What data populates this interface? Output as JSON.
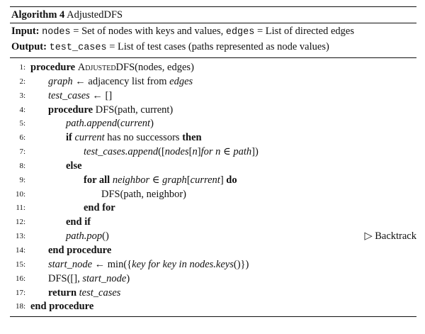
{
  "caption": {
    "label": "Algorithm 4",
    "name": "AdjustedDFS"
  },
  "spec": {
    "input_kw": "Input:",
    "input_var1": "nodes",
    "input_text1": " = Set of nodes with keys and values, ",
    "input_var2": "edges",
    "input_text2": " = List of directed edges",
    "output_kw": "Output:",
    "output_var": "test_cases",
    "output_text": " = List of test cases (paths represented as node values)"
  },
  "lines": [
    {
      "n": "1:",
      "indent": 0,
      "parts": [
        {
          "t": "procedure ",
          "s": "kw"
        },
        {
          "t": "Adjusted",
          "s": "sc"
        },
        {
          "t": "DFS(nodes, edges)",
          "s": ""
        }
      ]
    },
    {
      "n": "2:",
      "indent": 1,
      "parts": [
        {
          "t": "graph",
          "s": "it"
        },
        {
          "t": " ← adjacency list from ",
          "s": ""
        },
        {
          "t": "edges",
          "s": "it"
        }
      ]
    },
    {
      "n": "3:",
      "indent": 1,
      "parts": [
        {
          "t": "test_cases",
          "s": "it"
        },
        {
          "t": " ← []",
          "s": ""
        }
      ]
    },
    {
      "n": "4:",
      "indent": 1,
      "parts": [
        {
          "t": "procedure ",
          "s": "kw"
        },
        {
          "t": "DFS(path, current)",
          "s": ""
        }
      ]
    },
    {
      "n": "5:",
      "indent": 2,
      "parts": [
        {
          "t": "path.append",
          "s": "it"
        },
        {
          "t": "(",
          "s": ""
        },
        {
          "t": "current",
          "s": "it"
        },
        {
          "t": ")",
          "s": ""
        }
      ]
    },
    {
      "n": "6:",
      "indent": 2,
      "parts": [
        {
          "t": "if ",
          "s": "kw"
        },
        {
          "t": "current",
          "s": "it"
        },
        {
          "t": " has no successors ",
          "s": ""
        },
        {
          "t": "then",
          "s": "kw"
        }
      ]
    },
    {
      "n": "7:",
      "indent": 3,
      "parts": [
        {
          "t": "test_cases.append",
          "s": "it"
        },
        {
          "t": "([",
          "s": ""
        },
        {
          "t": "nodes",
          "s": "it"
        },
        {
          "t": "[",
          "s": ""
        },
        {
          "t": "n",
          "s": "it"
        },
        {
          "t": "]",
          "s": ""
        },
        {
          "t": "for  n",
          "s": "it"
        },
        {
          "t": " ∈ ",
          "s": ""
        },
        {
          "t": "path",
          "s": "it"
        },
        {
          "t": "])",
          "s": ""
        }
      ]
    },
    {
      "n": "8:",
      "indent": 2,
      "parts": [
        {
          "t": "else",
          "s": "kw"
        }
      ]
    },
    {
      "n": "9:",
      "indent": 3,
      "parts": [
        {
          "t": "for all ",
          "s": "kw"
        },
        {
          "t": "neighbor",
          "s": "it"
        },
        {
          "t": " ∈ ",
          "s": ""
        },
        {
          "t": "graph",
          "s": "it"
        },
        {
          "t": "[",
          "s": ""
        },
        {
          "t": "current",
          "s": "it"
        },
        {
          "t": "] ",
          "s": ""
        },
        {
          "t": "do",
          "s": "kw"
        }
      ]
    },
    {
      "n": "10:",
      "indent": 4,
      "parts": [
        {
          "t": "DFS(path, neighbor)",
          "s": ""
        }
      ]
    },
    {
      "n": "11:",
      "indent": 3,
      "parts": [
        {
          "t": "end for",
          "s": "kw"
        }
      ]
    },
    {
      "n": "12:",
      "indent": 2,
      "parts": [
        {
          "t": "end if",
          "s": "kw"
        }
      ]
    },
    {
      "n": "13:",
      "indent": 2,
      "parts": [
        {
          "t": "path.pop",
          "s": "it"
        },
        {
          "t": "()",
          "s": ""
        }
      ],
      "comment": "▷ Backtrack"
    },
    {
      "n": "14:",
      "indent": 1,
      "parts": [
        {
          "t": "end procedure",
          "s": "kw"
        }
      ]
    },
    {
      "n": "15:",
      "indent": 1,
      "parts": [
        {
          "t": "start_node",
          "s": "it"
        },
        {
          "t": " ← min({",
          "s": ""
        },
        {
          "t": "key  for  key  in  nodes.keys",
          "s": "it"
        },
        {
          "t": "()})",
          "s": ""
        }
      ]
    },
    {
      "n": "16:",
      "indent": 1,
      "parts": [
        {
          "t": "DFS([], ",
          "s": ""
        },
        {
          "t": "start_node",
          "s": "it"
        },
        {
          "t": ")",
          "s": ""
        }
      ]
    },
    {
      "n": "17:",
      "indent": 1,
      "parts": [
        {
          "t": "return ",
          "s": "kw"
        },
        {
          "t": "test_cases",
          "s": "it"
        }
      ]
    },
    {
      "n": "18:",
      "indent": 0,
      "parts": [
        {
          "t": "end procedure",
          "s": "kw"
        }
      ]
    }
  ]
}
